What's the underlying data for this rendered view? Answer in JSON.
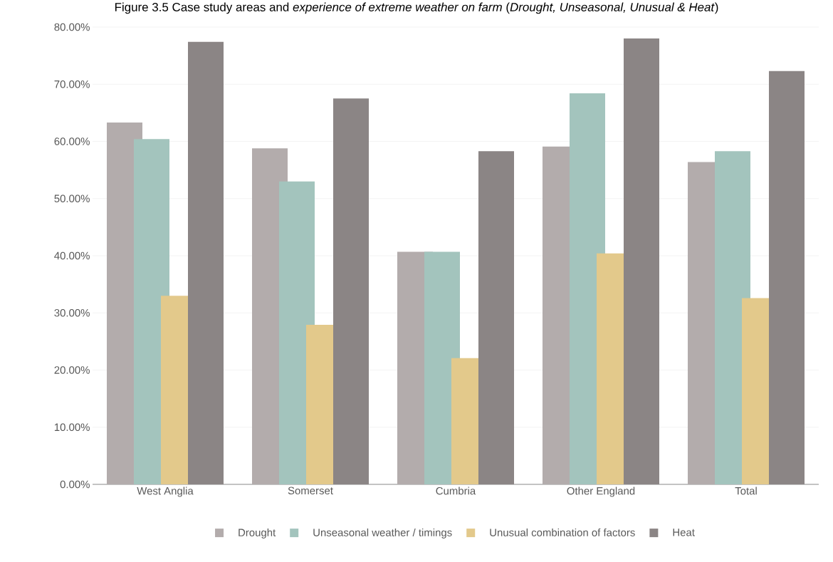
{
  "chart_data": {
    "type": "bar",
    "title": "Figure 3.5 Case study areas and *experience of extreme weather on farm* (*Drought, Unseasonal, Unusual & Heat*)",
    "categories": [
      "West  Anglia",
      "Somerset",
      "Cumbria",
      "Other  England",
      "Total"
    ],
    "series": [
      {
        "name": "Drought",
        "color": "#b3acac",
        "values": [
          63.3,
          58.8,
          40.7,
          59.1,
          56.4
        ]
      },
      {
        "name": "Unseasonal weather / timings",
        "color": "#a3c4bd",
        "values": [
          60.4,
          53.0,
          40.7,
          68.4,
          58.3
        ]
      },
      {
        "name": "Unusual combination of factors",
        "color": "#e3c98b",
        "values": [
          33.0,
          27.9,
          22.1,
          40.4,
          32.6
        ]
      },
      {
        "name": "Heat",
        "color": "#8b8585",
        "values": [
          77.4,
          67.5,
          58.3,
          78.0,
          72.3
        ]
      }
    ],
    "ylim": [
      0,
      80
    ],
    "yticks": [
      {
        "value": 0,
        "label": "0.00%"
      },
      {
        "value": 10,
        "label": "10.00%"
      },
      {
        "value": 20,
        "label": "20.00%"
      },
      {
        "value": 30,
        "label": "30.00%"
      },
      {
        "value": 40,
        "label": "40.00%"
      },
      {
        "value": 50,
        "label": "50.00%"
      },
      {
        "value": 60,
        "label": "60.00%"
      },
      {
        "value": 70,
        "label": "70.00%"
      },
      {
        "value": 80,
        "label": "80.00%"
      }
    ],
    "grid": "y",
    "legend": "bottom"
  }
}
